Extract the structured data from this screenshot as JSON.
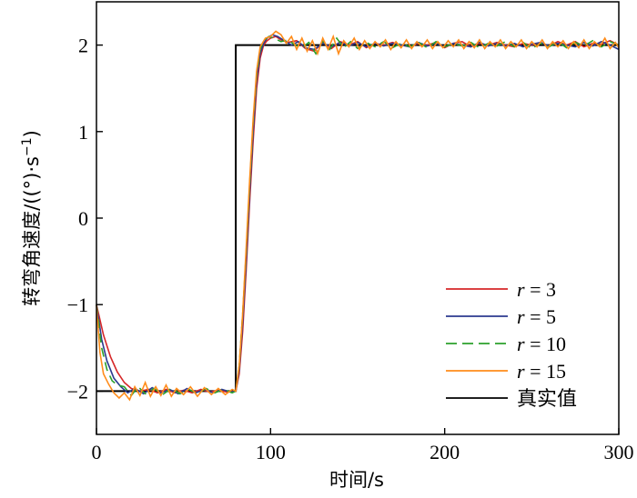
{
  "chart_data": {
    "type": "line",
    "xlabel": "时间/s",
    "ylabel": "转弯角速度/((°)·s⁻¹)",
    "ylabel_unit_main": "转弯角速度/((°)·s",
    "ylabel_unit_sup": "−1",
    "ylabel_unit_close": ")",
    "xlim": [
      0,
      300
    ],
    "ylim": [
      -2.5,
      2.5
    ],
    "x_ticks": [
      0,
      100,
      200,
      300
    ],
    "y_ticks": [
      -2,
      -1,
      0,
      1,
      2
    ],
    "grid": false,
    "legend_position": "bottom-right",
    "series": [
      {
        "name": "r = 3",
        "name_var": "r",
        "name_rest": " = 3",
        "color": "#d62728",
        "dash": "solid",
        "points": [
          [
            0,
            -1.0
          ],
          [
            4,
            -1.35
          ],
          [
            8,
            -1.6
          ],
          [
            12,
            -1.78
          ],
          [
            16,
            -1.9
          ],
          [
            20,
            -1.97
          ],
          [
            25,
            -2.0
          ],
          [
            30,
            -1.98
          ],
          [
            35,
            -2.02
          ],
          [
            40,
            -1.98
          ],
          [
            45,
            -2.02
          ],
          [
            50,
            -1.99
          ],
          [
            55,
            -2.02
          ],
          [
            60,
            -1.98
          ],
          [
            65,
            -2.01
          ],
          [
            70,
            -1.99
          ],
          [
            75,
            -2.01
          ],
          [
            80,
            -2.0
          ],
          [
            82,
            -1.8
          ],
          [
            84,
            -1.3
          ],
          [
            86,
            -0.6
          ],
          [
            88,
            0.2
          ],
          [
            90,
            0.9
          ],
          [
            92,
            1.5
          ],
          [
            94,
            1.85
          ],
          [
            96,
            2.0
          ],
          [
            98,
            2.05
          ],
          [
            100,
            2.08
          ],
          [
            103,
            2.1
          ],
          [
            106,
            2.06
          ],
          [
            110,
            2.03
          ],
          [
            115,
            2.05
          ],
          [
            120,
            1.96
          ],
          [
            125,
            1.93
          ],
          [
            130,
            2.03
          ],
          [
            135,
            1.96
          ],
          [
            140,
            2.04
          ],
          [
            145,
            2.0
          ],
          [
            150,
            2.04
          ],
          [
            155,
            1.97
          ],
          [
            160,
            2.02
          ],
          [
            165,
            2.0
          ],
          [
            170,
            2.03
          ],
          [
            175,
            2.0
          ],
          [
            180,
            1.98
          ],
          [
            185,
            2.02
          ],
          [
            190,
            2.0
          ],
          [
            195,
            2.03
          ],
          [
            200,
            1.97
          ],
          [
            205,
            2.02
          ],
          [
            210,
            2.04
          ],
          [
            215,
            1.98
          ],
          [
            220,
            2.02
          ],
          [
            225,
            2.0
          ],
          [
            230,
            2.03
          ],
          [
            235,
            2.0
          ],
          [
            240,
            1.98
          ],
          [
            245,
            2.02
          ],
          [
            250,
            2.0
          ],
          [
            255,
            2.03
          ],
          [
            260,
            1.99
          ],
          [
            265,
            2.04
          ],
          [
            270,
            2.0
          ],
          [
            275,
            2.04
          ],
          [
            280,
            1.98
          ],
          [
            285,
            2.02
          ],
          [
            290,
            2.01
          ],
          [
            295,
            2.05
          ],
          [
            300,
            2.0
          ]
        ]
      },
      {
        "name": "r = 5",
        "name_var": "r",
        "name_rest": " = 5",
        "color": "#2b3a8f",
        "dash": "solid",
        "points": [
          [
            0,
            -1.0
          ],
          [
            3,
            -1.4
          ],
          [
            6,
            -1.65
          ],
          [
            10,
            -1.85
          ],
          [
            14,
            -1.95
          ],
          [
            18,
            -2.02
          ],
          [
            22,
            -1.97
          ],
          [
            27,
            -2.03
          ],
          [
            32,
            -1.96
          ],
          [
            37,
            -2.02
          ],
          [
            42,
            -1.98
          ],
          [
            47,
            -2.03
          ],
          [
            52,
            -1.97
          ],
          [
            57,
            -2.02
          ],
          [
            62,
            -1.98
          ],
          [
            67,
            -2.02
          ],
          [
            72,
            -1.98
          ],
          [
            77,
            -2.01
          ],
          [
            80,
            -2.0
          ],
          [
            82,
            -1.75
          ],
          [
            84,
            -1.2
          ],
          [
            86,
            -0.5
          ],
          [
            88,
            0.3
          ],
          [
            90,
            1.0
          ],
          [
            92,
            1.6
          ],
          [
            94,
            1.9
          ],
          [
            96,
            2.02
          ],
          [
            98,
            2.08
          ],
          [
            101,
            2.12
          ],
          [
            104,
            2.1
          ],
          [
            108,
            2.05
          ],
          [
            112,
            2.0
          ],
          [
            116,
            2.04
          ],
          [
            120,
            1.97
          ],
          [
            125,
            1.95
          ],
          [
            130,
            2.02
          ],
          [
            135,
            1.98
          ],
          [
            140,
            2.03
          ],
          [
            145,
            1.99
          ],
          [
            150,
            2.03
          ],
          [
            155,
            1.98
          ],
          [
            160,
            2.02
          ],
          [
            165,
            1.99
          ],
          [
            170,
            2.02
          ],
          [
            175,
            2.0
          ],
          [
            180,
            1.98
          ],
          [
            185,
            2.03
          ],
          [
            190,
            1.99
          ],
          [
            195,
            2.02
          ],
          [
            200,
            1.98
          ],
          [
            205,
            2.02
          ],
          [
            210,
            2.0
          ],
          [
            215,
            1.98
          ],
          [
            220,
            2.03
          ],
          [
            225,
            1.99
          ],
          [
            230,
            2.02
          ],
          [
            235,
            1.99
          ],
          [
            240,
            2.02
          ],
          [
            245,
            1.98
          ],
          [
            250,
            2.01
          ],
          [
            255,
            2.03
          ],
          [
            260,
            1.99
          ],
          [
            265,
            2.02
          ],
          [
            270,
            2.0
          ],
          [
            275,
            1.98
          ],
          [
            280,
            2.03
          ],
          [
            285,
            1.99
          ],
          [
            290,
            2.04
          ],
          [
            295,
            2.0
          ],
          [
            300,
            1.95
          ]
        ]
      },
      {
        "name": "r = 10",
        "name_var": "r",
        "name_rest": " = 10",
        "color": "#2ca02c",
        "dash": "10,6",
        "points": [
          [
            0,
            -1.0
          ],
          [
            3,
            -1.5
          ],
          [
            6,
            -1.75
          ],
          [
            9,
            -1.88
          ],
          [
            12,
            -1.93
          ],
          [
            16,
            -1.95
          ],
          [
            20,
            -2.05
          ],
          [
            24,
            -1.95
          ],
          [
            28,
            -2.03
          ],
          [
            33,
            -1.97
          ],
          [
            38,
            -2.04
          ],
          [
            43,
            -1.97
          ],
          [
            48,
            -2.03
          ],
          [
            53,
            -1.98
          ],
          [
            58,
            -2.03
          ],
          [
            63,
            -1.97
          ],
          [
            68,
            -2.02
          ],
          [
            73,
            -1.98
          ],
          [
            78,
            -2.02
          ],
          [
            80,
            -2.0
          ],
          [
            82,
            -1.7
          ],
          [
            84,
            -1.1
          ],
          [
            86,
            -0.4
          ],
          [
            88,
            0.4
          ],
          [
            90,
            1.1
          ],
          [
            92,
            1.65
          ],
          [
            94,
            1.95
          ],
          [
            96,
            2.05
          ],
          [
            99,
            2.1
          ],
          [
            102,
            2.08
          ],
          [
            106,
            2.04
          ],
          [
            110,
            2.06
          ],
          [
            114,
            2.0
          ],
          [
            118,
            1.97
          ],
          [
            122,
            2.03
          ],
          [
            126,
            1.9
          ],
          [
            130,
            2.05
          ],
          [
            134,
            1.95
          ],
          [
            138,
            2.08
          ],
          [
            142,
            1.97
          ],
          [
            146,
            2.04
          ],
          [
            150,
            1.96
          ],
          [
            155,
            2.03
          ],
          [
            160,
            1.98
          ],
          [
            165,
            2.04
          ],
          [
            170,
            1.97
          ],
          [
            175,
            2.02
          ],
          [
            180,
            1.98
          ],
          [
            185,
            2.03
          ],
          [
            190,
            1.97
          ],
          [
            195,
            2.04
          ],
          [
            200,
            1.98
          ],
          [
            205,
            2.02
          ],
          [
            210,
            1.99
          ],
          [
            215,
            2.03
          ],
          [
            220,
            1.97
          ],
          [
            225,
            2.02
          ],
          [
            230,
            1.99
          ],
          [
            235,
            2.04
          ],
          [
            240,
            1.98
          ],
          [
            245,
            2.03
          ],
          [
            250,
            1.96
          ],
          [
            255,
            2.02
          ],
          [
            260,
            1.98
          ],
          [
            265,
            2.04
          ],
          [
            270,
            1.97
          ],
          [
            275,
            2.03
          ],
          [
            280,
            1.99
          ],
          [
            285,
            2.05
          ],
          [
            290,
            1.98
          ],
          [
            295,
            2.04
          ],
          [
            300,
            2.0
          ]
        ]
      },
      {
        "name": "r = 15",
        "name_var": "r",
        "name_rest": " = 15",
        "color": "#ff8c1a",
        "dash": "solid",
        "points": [
          [
            0,
            -1.0
          ],
          [
            2,
            -1.55
          ],
          [
            4,
            -1.8
          ],
          [
            7,
            -1.92
          ],
          [
            10,
            -2.02
          ],
          [
            13,
            -2.08
          ],
          [
            16,
            -2.02
          ],
          [
            19,
            -2.1
          ],
          [
            22,
            -1.95
          ],
          [
            25,
            -2.05
          ],
          [
            28,
            -1.9
          ],
          [
            31,
            -2.06
          ],
          [
            34,
            -1.95
          ],
          [
            37,
            -2.05
          ],
          [
            40,
            -1.93
          ],
          [
            43,
            -2.06
          ],
          [
            46,
            -1.97
          ],
          [
            50,
            -2.04
          ],
          [
            54,
            -1.95
          ],
          [
            58,
            -2.06
          ],
          [
            62,
            -1.96
          ],
          [
            66,
            -2.04
          ],
          [
            70,
            -1.97
          ],
          [
            74,
            -2.04
          ],
          [
            78,
            -1.98
          ],
          [
            80,
            -2.0
          ],
          [
            82,
            -1.7
          ],
          [
            84,
            -1.1
          ],
          [
            86,
            -0.35
          ],
          [
            88,
            0.45
          ],
          [
            90,
            1.15
          ],
          [
            92,
            1.7
          ],
          [
            94,
            1.98
          ],
          [
            97,
            2.08
          ],
          [
            100,
            2.1
          ],
          [
            103,
            2.16
          ],
          [
            106,
            2.12
          ],
          [
            109,
            2.02
          ],
          [
            112,
            2.1
          ],
          [
            115,
            1.95
          ],
          [
            118,
            2.08
          ],
          [
            121,
            1.93
          ],
          [
            124,
            2.05
          ],
          [
            127,
            1.9
          ],
          [
            130,
            2.08
          ],
          [
            133,
            1.95
          ],
          [
            136,
            2.1
          ],
          [
            139,
            1.9
          ],
          [
            142,
            2.05
          ],
          [
            145,
            1.98
          ],
          [
            148,
            2.08
          ],
          [
            151,
            1.95
          ],
          [
            154,
            2.05
          ],
          [
            157,
            1.96
          ],
          [
            160,
            2.04
          ],
          [
            163,
            1.98
          ],
          [
            166,
            2.06
          ],
          [
            169,
            1.95
          ],
          [
            172,
            2.04
          ],
          [
            175,
            1.97
          ],
          [
            178,
            2.06
          ],
          [
            181,
            1.96
          ],
          [
            184,
            2.04
          ],
          [
            187,
            1.98
          ],
          [
            190,
            2.06
          ],
          [
            193,
            1.96
          ],
          [
            196,
            2.04
          ],
          [
            199,
            1.97
          ],
          [
            202,
            2.05
          ],
          [
            205,
            1.98
          ],
          [
            208,
            2.06
          ],
          [
            211,
            1.96
          ],
          [
            214,
            2.04
          ],
          [
            217,
            1.97
          ],
          [
            220,
            2.06
          ],
          [
            223,
            1.96
          ],
          [
            226,
            2.04
          ],
          [
            229,
            1.98
          ],
          [
            232,
            2.06
          ],
          [
            235,
            1.96
          ],
          [
            238,
            2.04
          ],
          [
            241,
            1.98
          ],
          [
            244,
            2.06
          ],
          [
            247,
            1.96
          ],
          [
            250,
            2.04
          ],
          [
            253,
            1.98
          ],
          [
            256,
            2.06
          ],
          [
            259,
            1.96
          ],
          [
            262,
            2.04
          ],
          [
            265,
            1.98
          ],
          [
            268,
            2.05
          ],
          [
            271,
            1.96
          ],
          [
            274,
            2.04
          ],
          [
            277,
            1.97
          ],
          [
            280,
            2.06
          ],
          [
            283,
            1.96
          ],
          [
            286,
            2.04
          ],
          [
            289,
            1.98
          ],
          [
            292,
            2.08
          ],
          [
            295,
            1.96
          ],
          [
            298,
            2.03
          ],
          [
            300,
            1.97
          ]
        ]
      },
      {
        "name": "真实值",
        "color": "#000000",
        "dash": "solid",
        "points": [
          [
            0,
            -2.0
          ],
          [
            80,
            -2.0
          ],
          [
            80,
            2.0
          ],
          [
            300,
            2.0
          ]
        ]
      }
    ]
  }
}
